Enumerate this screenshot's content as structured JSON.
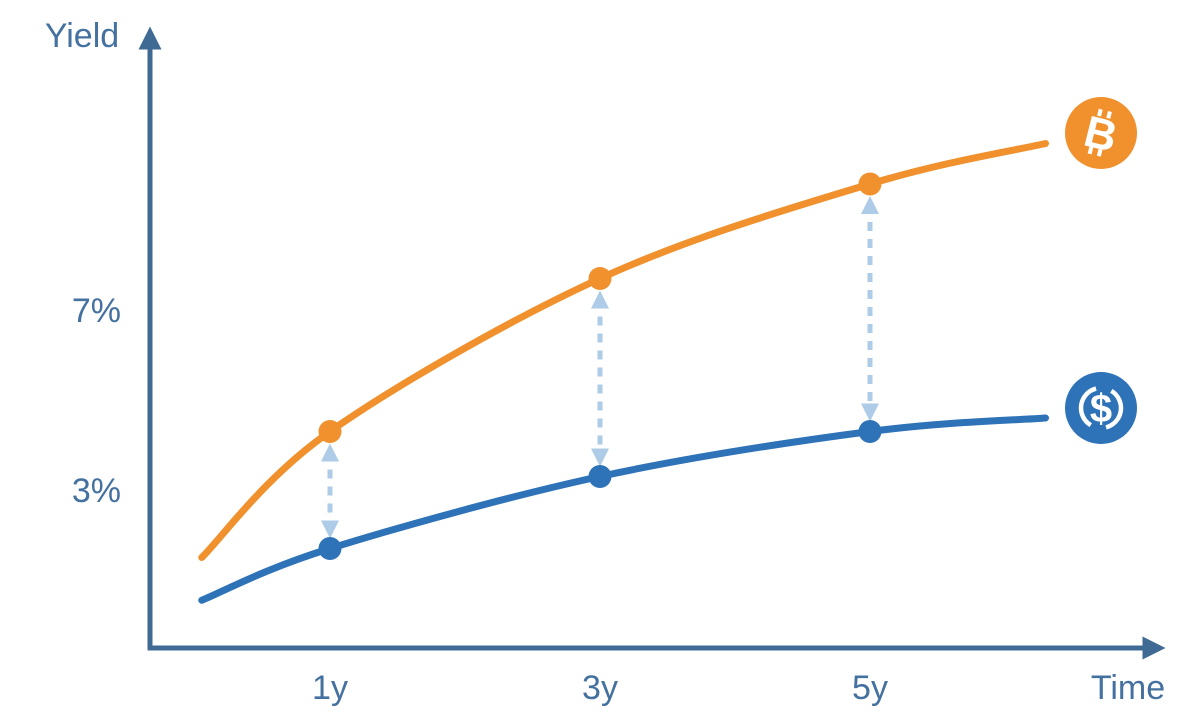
{
  "chart_data": {
    "type": "line",
    "xlabel": "Time",
    "ylabel": "Yield",
    "grid": false,
    "legend_position": "icons-at-curve-ends",
    "xlim_years": [
      0,
      7
    ],
    "ylim_percent": [
      0,
      12
    ],
    "x_ticks": [
      {
        "label": "1y",
        "year": 1
      },
      {
        "label": "3y",
        "year": 3
      },
      {
        "label": "5y",
        "year": 5
      }
    ],
    "y_ticks": [
      {
        "label": "7%",
        "value": 7
      },
      {
        "label": "3%",
        "value": 3
      }
    ],
    "series": [
      {
        "name": "bitcoin-yield-curve",
        "asset": "Bitcoin",
        "color": "#f0912d",
        "icon": "bitcoin-icon",
        "points": [
          {
            "year": 0.05,
            "yield_pct": 1.5
          },
          {
            "year": 1,
            "yield_pct": 4.3
          },
          {
            "year": 3,
            "yield_pct": 7.7
          },
          {
            "year": 5,
            "yield_pct": 9.8
          },
          {
            "year": 6.3,
            "yield_pct": 10.7
          }
        ],
        "marker_years": [
          1,
          3,
          5
        ]
      },
      {
        "name": "stablecoin-yield-curve",
        "asset": "USD Coin",
        "color": "#2e72b8",
        "icon": "usd-coin-icon",
        "points": [
          {
            "year": 0.05,
            "yield_pct": 0.55
          },
          {
            "year": 1,
            "yield_pct": 1.7
          },
          {
            "year": 3,
            "yield_pct": 3.3
          },
          {
            "year": 5,
            "yield_pct": 4.3
          },
          {
            "year": 6.3,
            "yield_pct": 4.6
          }
        ],
        "marker_years": [
          1,
          3,
          5
        ]
      }
    ],
    "spread_arrows": {
      "years": [
        1,
        3,
        5
      ],
      "style": "dashed-double-headed"
    }
  },
  "icons": {
    "bitcoin_symbol": "B",
    "dollar_symbol": "$"
  },
  "colors": {
    "background": "#ffffff",
    "axis": "#3f6a94",
    "label_text": "#44719f",
    "bitcoin_orange": "#f0912d",
    "stablecoin_blue": "#2e72b8",
    "spread_arrow": "#aecbe8",
    "icon_glyph": "#ffffff"
  }
}
